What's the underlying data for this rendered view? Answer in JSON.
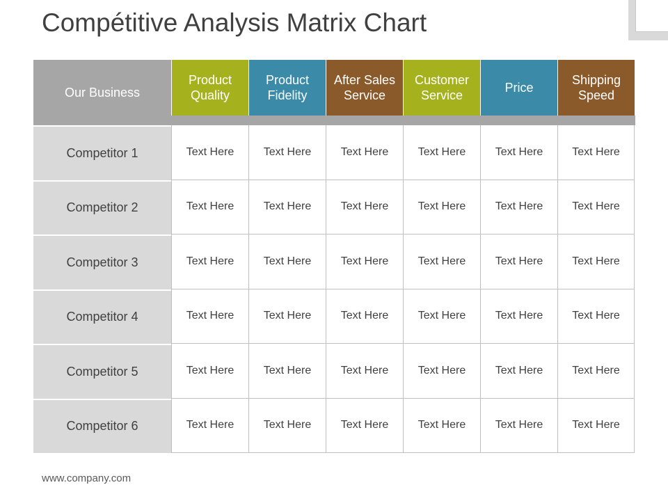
{
  "title": "Compétitive Analysis Matrix Chart",
  "matrix": {
    "corner_label": "Our Business",
    "columns": [
      {
        "label": "Product Quality",
        "color": "#a5b21e"
      },
      {
        "label": "Product Fidelity",
        "color": "#3b8ba8"
      },
      {
        "label": "After Sales Service",
        "color": "#8b5a2b"
      },
      {
        "label": "Customer Service",
        "color": "#a5b21e"
      },
      {
        "label": "Price",
        "color": "#3b8ba8"
      },
      {
        "label": "Shipping Speed",
        "color": "#8b5a2b"
      }
    ],
    "rows": [
      {
        "label": "Competitor 1",
        "cells": [
          "Text Here",
          "Text Here",
          "Text Here",
          "Text Here",
          "Text Here",
          "Text Here"
        ]
      },
      {
        "label": "Competitor 2",
        "cells": [
          "Text Here",
          "Text Here",
          "Text Here",
          "Text Here",
          "Text Here",
          "Text Here"
        ]
      },
      {
        "label": "Competitor 3",
        "cells": [
          "Text Here",
          "Text Here",
          "Text Here",
          "Text Here",
          "Text Here",
          "Text Here"
        ]
      },
      {
        "label": "Competitor 4",
        "cells": [
          "Text Here",
          "Text Here",
          "Text Here",
          "Text Here",
          "Text Here",
          "Text Here"
        ]
      },
      {
        "label": "Competitor 5",
        "cells": [
          "Text Here",
          "Text Here",
          "Text Here",
          "Text Here",
          "Text Here",
          "Text Here"
        ]
      },
      {
        "label": "Competitor 6",
        "cells": [
          "Text Here",
          "Text Here",
          "Text Here",
          "Text Here",
          "Text Here",
          "Text Here"
        ]
      }
    ]
  },
  "footer": {
    "url": "www.company.com"
  },
  "colors": {
    "header_gray": "#a6a6a6",
    "row_label_gray": "#d9d9d9",
    "text": "#404040"
  }
}
